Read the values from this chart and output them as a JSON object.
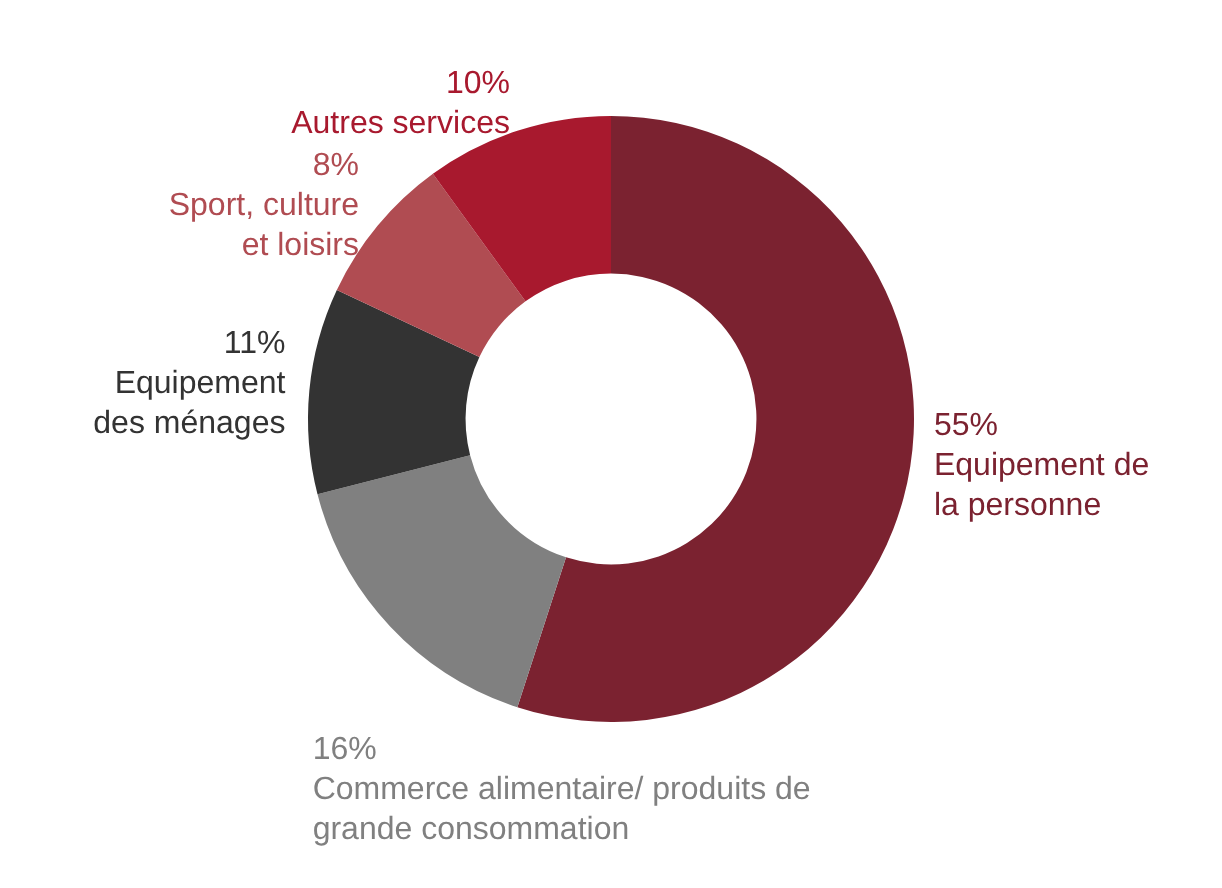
{
  "chart_data": {
    "type": "donut",
    "categories": [
      "Equipement de la personne",
      "Commerce alimentaire/ produits de grande consommation",
      "Equipement des ménages",
      "Sport, culture et loisirs",
      "Autres services"
    ],
    "values": [
      55,
      16,
      11,
      8,
      10
    ],
    "value_labels": [
      "55%",
      "16%",
      "11%",
      "8%",
      "10%"
    ],
    "colors": [
      "#7b2230",
      "#808080",
      "#333333",
      "#b04c52",
      "#a8192e"
    ],
    "legend": false
  }
}
